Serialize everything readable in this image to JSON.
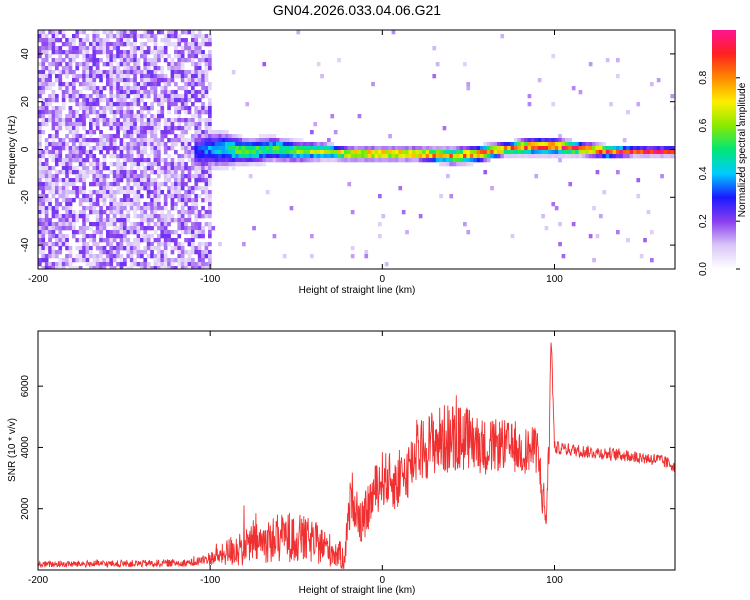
{
  "title": "GN04.2026.033.04.06.G21",
  "chart_data": [
    {
      "type": "heatmap",
      "name": "spectrogram",
      "xlabel": "Height of straight line (km)",
      "ylabel": "Frequency (Hz)",
      "xlim": [
        -200,
        170
      ],
      "ylim": [
        -50,
        50
      ],
      "x_ticks": [
        -200,
        -100,
        0,
        100
      ],
      "y_ticks": [
        -40,
        -20,
        0,
        20,
        40
      ],
      "colorbar": {
        "label": "Normalized spectral amplitude",
        "range": [
          0.0,
          1.0
        ],
        "ticks": [
          0.0,
          0.2,
          0.4,
          0.6,
          0.8
        ],
        "tick_labels": [
          "0.0",
          "0.2",
          "0.4",
          "0.6",
          "0.8"
        ],
        "colors": [
          "#ffffff",
          "#d9c6f7",
          "#8a3df0",
          "#1a1aff",
          "#00ccff",
          "#00e676",
          "#8bea00",
          "#ffee00",
          "#ff8800",
          "#ff2020",
          "#ff1493"
        ]
      },
      "noise_region": {
        "x_from": -200,
        "x_to": -100,
        "intensity": 0.2
      },
      "ridge": {
        "x": [
          -110,
          -95,
          -80,
          -65,
          -50,
          -35,
          -20,
          0,
          20,
          40,
          55,
          70,
          85,
          100,
          115,
          130,
          145,
          170
        ],
        "frequency": [
          0,
          1,
          0,
          1,
          0,
          0,
          -1,
          -1,
          -1,
          -2,
          -1,
          1,
          2,
          2,
          1,
          0,
          0,
          0
        ],
        "amplitude": [
          0.3,
          0.45,
          0.6,
          0.55,
          0.6,
          0.65,
          0.8,
          0.85,
          0.85,
          0.8,
          0.85,
          0.9,
          0.9,
          0.9,
          0.95,
          0.9,
          0.95,
          0.95
        ],
        "width_hz": [
          10,
          9,
          6,
          6,
          5,
          4,
          3,
          3,
          3,
          4,
          4,
          3,
          4,
          4,
          3,
          3,
          2,
          2
        ]
      }
    },
    {
      "type": "line",
      "name": "snr",
      "xlabel": "Height of straight line (km)",
      "ylabel": "SNR (10 * v/v)",
      "xlim": [
        -200,
        170
      ],
      "ylim": [
        0,
        7800
      ],
      "x_ticks": [
        -200,
        -100,
        0,
        100
      ],
      "y_ticks": [
        2000,
        4000,
        6000
      ],
      "color": "#f03030",
      "series": [
        {
          "name": "SNR",
          "x": [
            -200,
            -170,
            -140,
            -110,
            -95,
            -85,
            -70,
            -55,
            -45,
            -35,
            -22,
            -18,
            -12,
            -5,
            0,
            10,
            20,
            30,
            40,
            50,
            60,
            70,
            80,
            90,
            95,
            97,
            98,
            100,
            120,
            140,
            160,
            170
          ],
          "y": [
            180,
            200,
            210,
            240,
            450,
            700,
            900,
            1100,
            1000,
            800,
            400,
            2500,
            1500,
            2500,
            3000,
            2800,
            3800,
            4200,
            4300,
            4300,
            4000,
            4100,
            3900,
            3900,
            1600,
            4200,
            7800,
            4000,
            3850,
            3750,
            3600,
            3400
          ],
          "spread": [
            150,
            160,
            170,
            180,
            400,
            900,
            1000,
            1200,
            1100,
            900,
            600,
            1200,
            1000,
            1200,
            1300,
            1300,
            1400,
            1600,
            1700,
            1500,
            1300,
            1200,
            1100,
            1100,
            1200,
            800,
            500,
            300,
            300,
            300,
            300,
            300
          ]
        }
      ]
    }
  ]
}
